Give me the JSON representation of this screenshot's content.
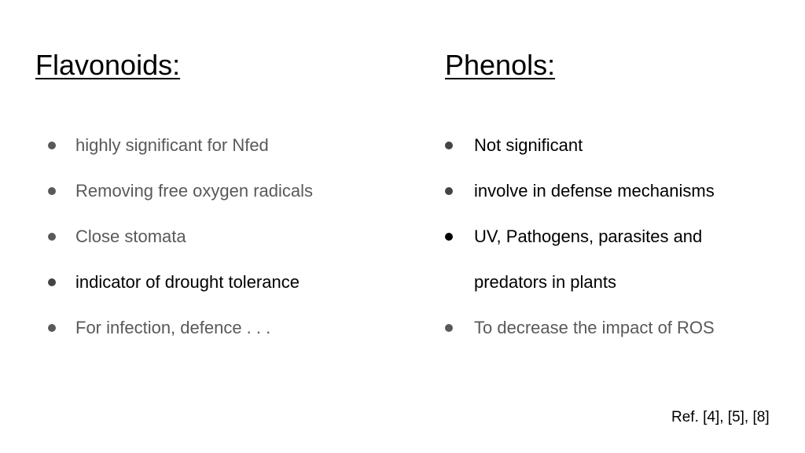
{
  "left_column": {
    "title": "Flavonoids:",
    "items": [
      {
        "text": "highly significant for Nfed",
        "color": "#595959"
      },
      {
        "text": "Removing free oxygen radicals",
        "color": "#595959"
      },
      {
        "text": "Close stomata",
        "color": "#595959"
      },
      {
        "text": "indicator of drought tolerance",
        "color": "#000000"
      },
      {
        "text": "For infection, defence . . .",
        "color": "#595959"
      }
    ]
  },
  "right_column": {
    "title": "Phenols:",
    "items": [
      {
        "text": "Not significant",
        "color": "#000000"
      },
      {
        "text": "involve in defense mechanisms",
        "color": "#000000"
      },
      {
        "text": "UV, Pathogens, parasites and predators in plants",
        "color": "#000000"
      },
      {
        "text": "To decrease the impact of ROS",
        "color": "#595959"
      }
    ]
  },
  "reference": "Ref. [4], [5], [8]"
}
